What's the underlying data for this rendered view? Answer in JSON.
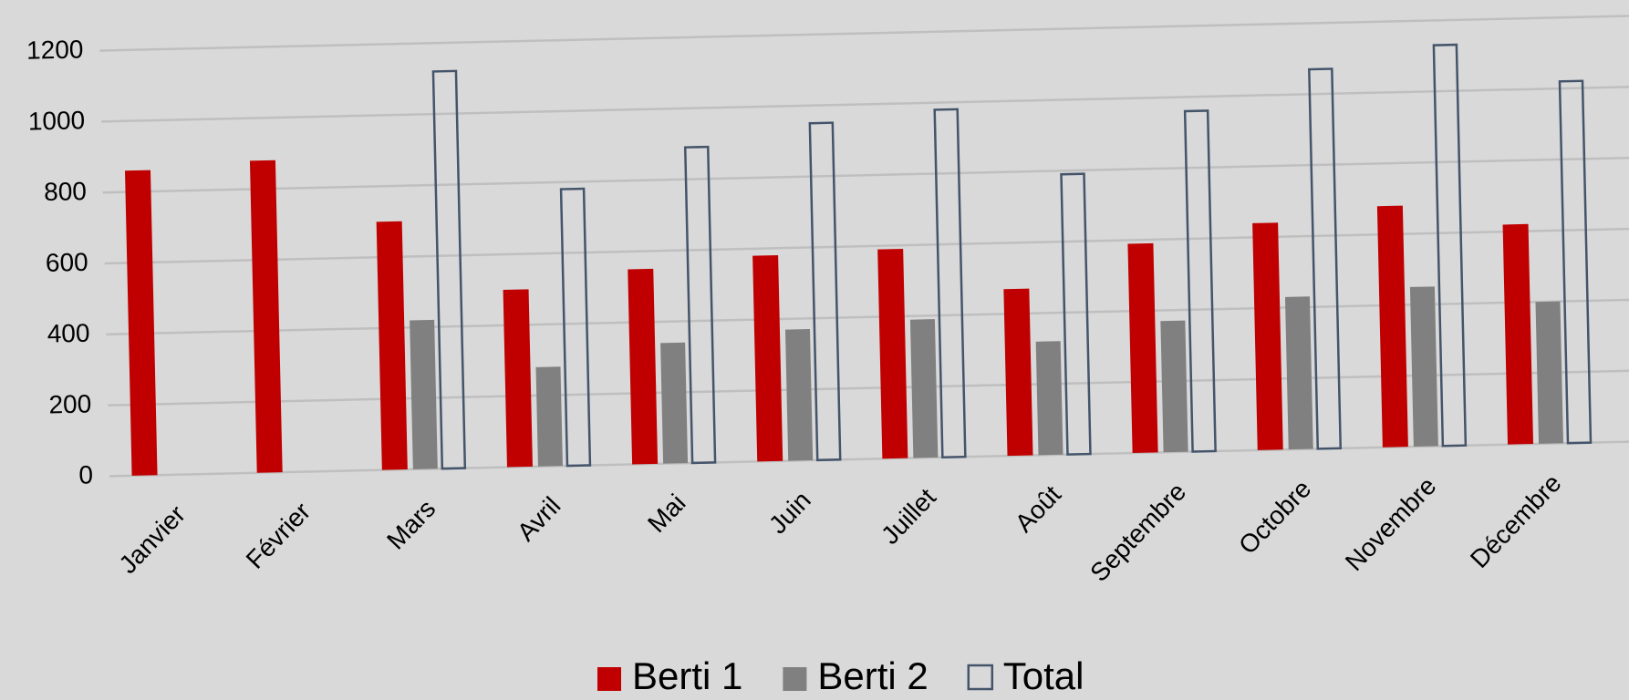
{
  "chart_data": {
    "type": "bar",
    "categories": [
      "Janvier",
      "Février",
      "Mars",
      "Avril",
      "Mai",
      "Juin",
      "Juillet",
      "Août",
      "Septembre",
      "Octobre",
      "Novembre",
      "Décembre"
    ],
    "series": [
      {
        "name": "Berti 1",
        "color": "#c00000",
        "values": [
          860,
          880,
          700,
          500,
          550,
          580,
          590,
          470,
          590,
          640,
          680,
          620
        ]
      },
      {
        "name": "Berti 2",
        "color": "#808080",
        "values": [
          null,
          null,
          420,
          280,
          340,
          370,
          390,
          320,
          370,
          430,
          450,
          400
        ]
      },
      {
        "name": "Total",
        "color": "#44546a",
        "values": [
          null,
          null,
          1120,
          780,
          890,
          950,
          980,
          790,
          960,
          1070,
          1130,
          1020
        ]
      }
    ],
    "ylim": [
      0,
      1200
    ],
    "yticks": [
      0,
      200,
      400,
      600,
      800,
      1000,
      1200
    ],
    "grid": true,
    "legend": "bottom"
  }
}
